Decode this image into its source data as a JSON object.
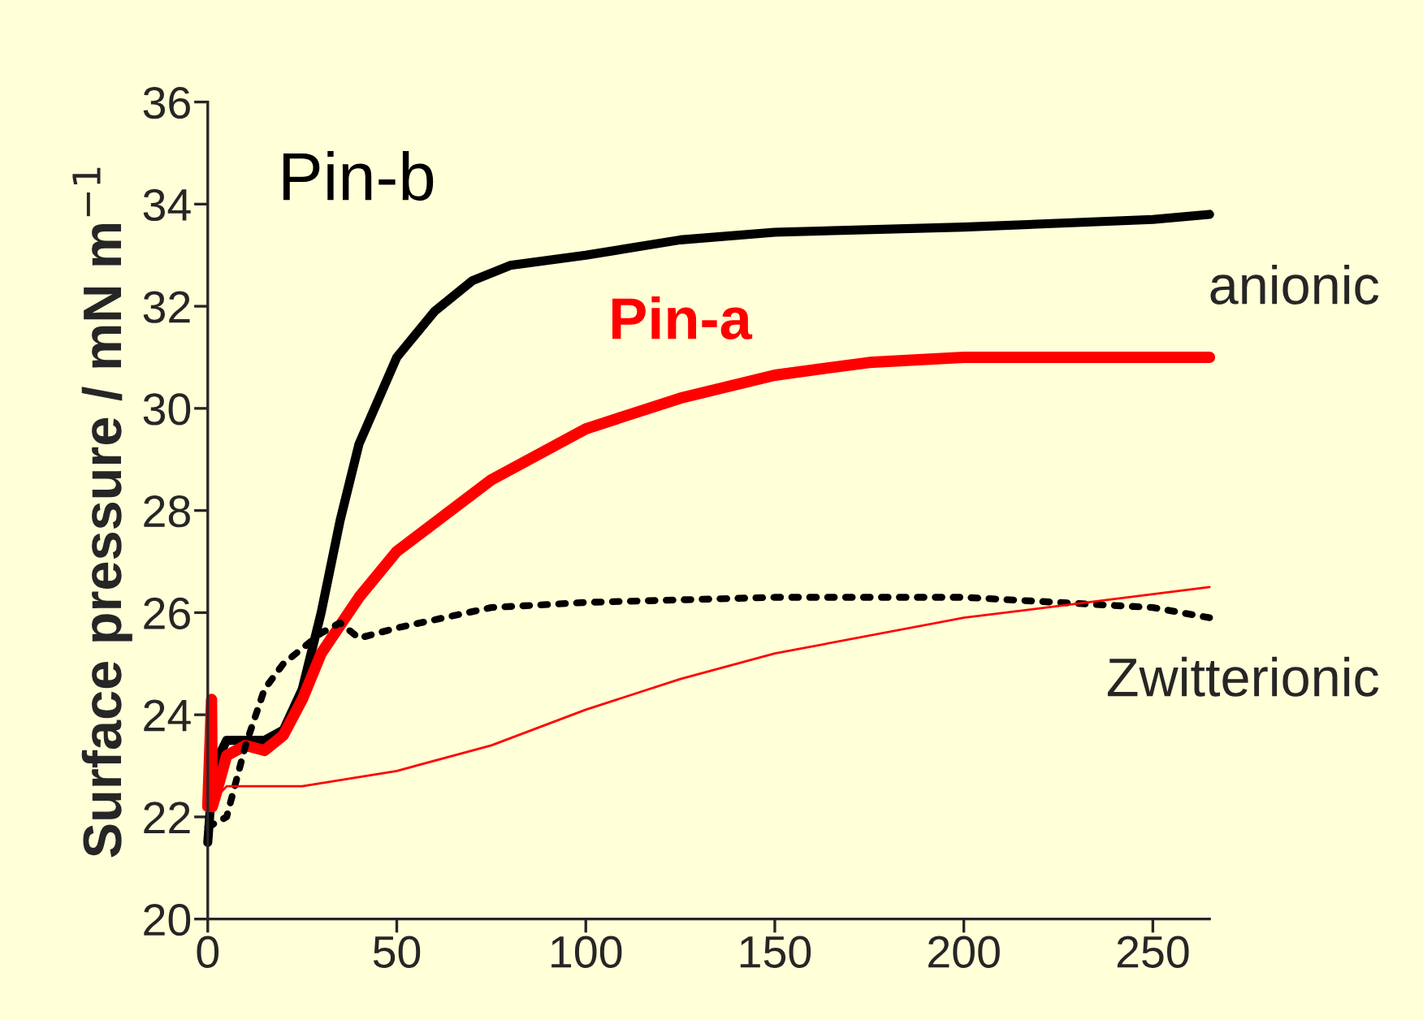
{
  "chart_data": {
    "type": "line",
    "ylabel": "Surface pressure / mN m$^{−1}$",
    "xlim": [
      0,
      265
    ],
    "xticks": [
      0,
      50,
      100,
      150,
      200,
      250
    ],
    "ylim": [
      20,
      36
    ],
    "yticks": [
      20,
      22,
      24,
      26,
      28,
      30,
      32,
      34,
      36
    ],
    "grid": false,
    "legend": false,
    "marker": "none",
    "series": [
      {
        "name": "Pin-b",
        "color": "#000000",
        "line_style": "solid",
        "x": [
          0,
          1,
          3,
          5,
          10,
          15,
          20,
          25,
          30,
          35,
          40,
          50,
          60,
          70,
          80,
          100,
          125,
          150,
          200,
          250,
          265
        ],
        "values": [
          21.5,
          22.5,
          23.2,
          23.5,
          23.5,
          23.5,
          23.7,
          24.5,
          26,
          27.8,
          29.3,
          31,
          31.9,
          32.5,
          32.8,
          33.0,
          33.3,
          33.45,
          33.55,
          33.7,
          33.8
        ]
      },
      {
        "name": "Pin-a",
        "color": "#ff0000",
        "line_style": "solid",
        "x": [
          0,
          1,
          1.2,
          2,
          5,
          10,
          15,
          20,
          25,
          30,
          40,
          50,
          75,
          100,
          125,
          150,
          175,
          200,
          265
        ],
        "values": [
          22.2,
          24.3,
          22.2,
          22.4,
          23.2,
          23.4,
          23.3,
          23.6,
          24.3,
          25.2,
          26.3,
          27.2,
          28.6,
          29.6,
          30.2,
          30.65,
          30.9,
          31.0,
          31.0
        ]
      },
      {
        "color": "#000000",
        "line_style": "dotted",
        "x": [
          0,
          5,
          10,
          15,
          20,
          30,
          35,
          40,
          50,
          75,
          100,
          150,
          200,
          250,
          265
        ],
        "values": [
          21.8,
          22.0,
          23.4,
          24.5,
          25.0,
          25.6,
          25.8,
          25.5,
          25.7,
          26.1,
          26.2,
          26.3,
          26.3,
          26.1,
          25.9
        ]
      },
      {
        "color": "#ff0000",
        "line_style": "solid",
        "x": [
          0,
          5,
          25,
          50,
          75,
          100,
          125,
          150,
          200,
          265
        ],
        "values": [
          22.2,
          22.6,
          22.6,
          22.9,
          23.4,
          24.1,
          24.7,
          25.2,
          25.9,
          26.5
        ]
      }
    ],
    "annotations": [
      "anionic",
      "Zwitterionic"
    ]
  }
}
